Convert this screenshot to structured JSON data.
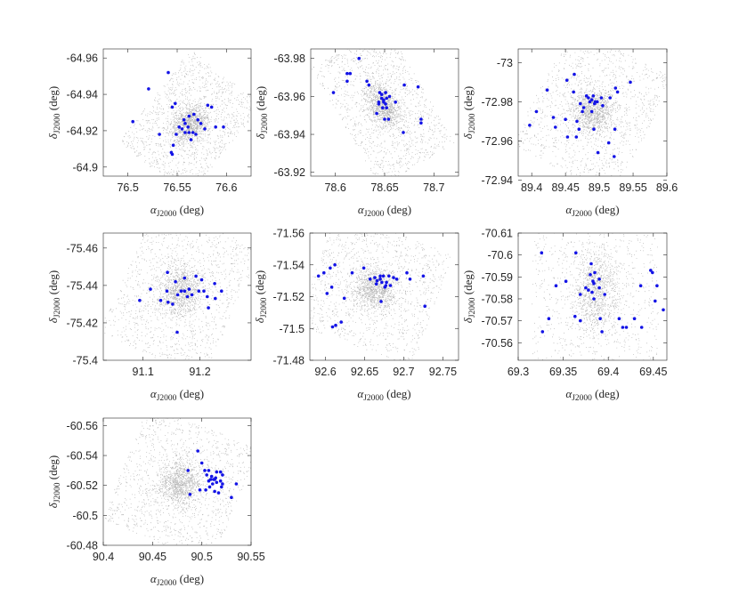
{
  "figure": {
    "background": "#ffffff",
    "field_star_color": "#b3b3b3",
    "member_color": "#1414e6",
    "axis_color": "#262626"
  },
  "chart_data": [
    {
      "type": "scatter",
      "panel": "panel-1",
      "xlabel": {
        "main": "α",
        "sub": "J2000",
        "unit": " (deg)"
      },
      "ylabel": {
        "main": "δ",
        "sub": "J2000",
        "unit": " (deg)"
      },
      "xlim": [
        76.475,
        76.625
      ],
      "ylim": [
        -64.965,
        -64.895
      ],
      "xticks": [
        76.5,
        76.55,
        76.6
      ],
      "xtick_labels": [
        "76.5",
        "76.55",
        "76.6"
      ],
      "yticks": [
        -64.96,
        -64.94,
        -64.92,
        -64.9
      ],
      "ytick_labels": [
        "-64.96",
        "-64.94",
        "-64.92",
        "-64.9"
      ],
      "field_center": [
        76.563,
        -64.924
      ],
      "field_halfwidth": [
        0.046,
        0.017
      ],
      "field_rotation": 38,
      "members": [
        [
          76.541,
          -64.952
        ],
        [
          76.521,
          -64.943
        ],
        [
          76.505,
          -64.925
        ],
        [
          76.548,
          -64.935
        ],
        [
          76.545,
          -64.933
        ],
        [
          76.581,
          -64.934
        ],
        [
          76.585,
          -64.933
        ],
        [
          76.562,
          -64.928
        ],
        [
          76.567,
          -64.929
        ],
        [
          76.571,
          -64.926
        ],
        [
          76.557,
          -64.926
        ],
        [
          76.552,
          -64.922
        ],
        [
          76.561,
          -64.922
        ],
        [
          76.574,
          -64.924
        ],
        [
          76.578,
          -64.921
        ],
        [
          76.589,
          -64.922
        ],
        [
          76.597,
          -64.922
        ],
        [
          76.555,
          -64.921
        ],
        [
          76.558,
          -64.919
        ],
        [
          76.562,
          -64.919
        ],
        [
          76.566,
          -64.919
        ],
        [
          76.569,
          -64.918
        ],
        [
          76.549,
          -64.918
        ],
        [
          76.532,
          -64.918
        ],
        [
          76.564,
          -64.915
        ],
        [
          76.546,
          -64.912
        ],
        [
          76.544,
          -64.908
        ],
        [
          76.545,
          -64.907
        ],
        [
          76.558,
          -64.924
        ]
      ]
    },
    {
      "type": "scatter",
      "panel": "panel-2",
      "xlabel": {
        "main": "α",
        "sub": "J2000",
        "unit": " (deg)"
      },
      "ylabel": {
        "main": "δ",
        "sub": "J2000",
        "unit": " (deg)"
      },
      "xlim": [
        78.575,
        78.725
      ],
      "ylim": [
        -63.985,
        -63.918
      ],
      "xticks": [
        78.6,
        78.65,
        78.7
      ],
      "xtick_labels": [
        "78.6",
        "78.65",
        "78.7"
      ],
      "yticks": [
        -63.98,
        -63.96,
        -63.94,
        -63.92
      ],
      "ytick_labels": [
        "-63.98",
        "-63.96",
        "-63.94",
        "-63.92"
      ],
      "field_center": [
        78.648,
        -63.955
      ],
      "field_halfwidth": [
        0.044,
        0.019
      ],
      "field_rotation": -30,
      "members": [
        [
          78.624,
          -63.98
        ],
        [
          78.612,
          -63.972
        ],
        [
          78.615,
          -63.972
        ],
        [
          78.612,
          -63.968
        ],
        [
          78.632,
          -63.968
        ],
        [
          78.67,
          -63.966
        ],
        [
          78.634,
          -63.966
        ],
        [
          78.684,
          -63.965
        ],
        [
          78.598,
          -63.962
        ],
        [
          78.645,
          -63.962
        ],
        [
          78.651,
          -63.962
        ],
        [
          78.647,
          -63.961
        ],
        [
          78.647,
          -63.959
        ],
        [
          78.652,
          -63.959
        ],
        [
          78.649,
          -63.958
        ],
        [
          78.649,
          -63.957
        ],
        [
          78.661,
          -63.957
        ],
        [
          78.644,
          -63.957
        ],
        [
          78.651,
          -63.956
        ],
        [
          78.648,
          -63.954
        ],
        [
          78.652,
          -63.954
        ],
        [
          78.642,
          -63.951
        ],
        [
          78.65,
          -63.948
        ],
        [
          78.654,
          -63.948
        ],
        [
          78.687,
          -63.948
        ],
        [
          78.687,
          -63.946
        ],
        [
          78.669,
          -63.941
        ],
        [
          78.644,
          -63.956
        ],
        [
          78.655,
          -63.96
        ]
      ]
    },
    {
      "type": "scatter",
      "panel": "panel-3",
      "xlabel": {
        "main": "α",
        "sub": "J2000",
        "unit": " (deg)"
      },
      "ylabel": {
        "main": "δ",
        "sub": "J2000",
        "unit": " (deg)"
      },
      "xlim": [
        89.38,
        89.6
      ],
      "ylim": [
        -73.007,
        -72.942
      ],
      "xticks": [
        89.4,
        89.45,
        89.5,
        89.55,
        89.6
      ],
      "xtick_labels": [
        "89.4",
        "89.45",
        "89.5",
        "89.55",
        "89.6"
      ],
      "yticks": [
        -73,
        -72.98,
        -72.96,
        -72.94
      ],
      "ytick_labels": [
        "-73",
        "-72.98",
        "-72.96",
        "-72.94"
      ],
      "field_center": [
        89.49,
        -72.975
      ],
      "field_halfwidth": [
        0.085,
        0.018
      ],
      "field_rotation": 28,
      "members": [
        [
          89.463,
          -72.994
        ],
        [
          89.452,
          -72.991
        ],
        [
          89.423,
          -72.986
        ],
        [
          89.462,
          -72.985
        ],
        [
          89.481,
          -72.983
        ],
        [
          89.491,
          -72.983
        ],
        [
          89.503,
          -72.982
        ],
        [
          89.516,
          -72.982
        ],
        [
          89.527,
          -72.985
        ],
        [
          89.546,
          -72.99
        ],
        [
          89.524,
          -72.987
        ],
        [
          89.486,
          -72.98
        ],
        [
          89.489,
          -72.981
        ],
        [
          89.497,
          -72.98
        ],
        [
          89.472,
          -72.979
        ],
        [
          89.493,
          -72.979
        ],
        [
          89.477,
          -72.977
        ],
        [
          89.505,
          -72.978
        ],
        [
          89.475,
          -72.975
        ],
        [
          89.489,
          -72.975
        ],
        [
          89.407,
          -72.975
        ],
        [
          89.432,
          -72.972
        ],
        [
          89.45,
          -72.971
        ],
        [
          89.467,
          -72.97
        ],
        [
          89.397,
          -72.968
        ],
        [
          89.435,
          -72.967
        ],
        [
          89.47,
          -72.966
        ],
        [
          89.492,
          -72.966
        ],
        [
          89.523,
          -72.966
        ],
        [
          89.453,
          -72.962
        ],
        [
          89.466,
          -72.962
        ],
        [
          89.514,
          -72.959
        ],
        [
          89.498,
          -72.954
        ],
        [
          89.522,
          -72.952
        ],
        [
          89.494,
          -72.98
        ],
        [
          89.484,
          -72.982
        ]
      ]
    },
    {
      "type": "scatter",
      "panel": "panel-4",
      "xlabel": {
        "main": "α",
        "sub": "J2000",
        "unit": " (deg)"
      },
      "ylabel": {
        "main": "δ",
        "sub": "J2000",
        "unit": " (deg)"
      },
      "xlim": [
        91.03,
        91.29
      ],
      "ylim": [
        -75.468,
        -75.4
      ],
      "xticks": [
        91.1,
        91.2
      ],
      "xtick_labels": [
        "91.1",
        "91.2"
      ],
      "yticks": [
        -75.46,
        -75.44,
        -75.42,
        -75.4
      ],
      "ytick_labels": [
        "-75.46",
        "-75.44",
        "-75.42",
        "-75.4"
      ],
      "field_center": [
        91.165,
        -75.437
      ],
      "field_halfwidth": [
        0.1,
        0.02
      ],
      "field_rotation": 25,
      "members": [
        [
          91.143,
          -75.447
        ],
        [
          91.193,
          -75.445
        ],
        [
          91.173,
          -75.444
        ],
        [
          91.157,
          -75.442
        ],
        [
          91.203,
          -75.443
        ],
        [
          91.226,
          -75.441
        ],
        [
          91.113,
          -75.438
        ],
        [
          91.181,
          -75.438
        ],
        [
          91.142,
          -75.437
        ],
        [
          91.167,
          -75.437
        ],
        [
          91.173,
          -75.437
        ],
        [
          91.198,
          -75.437
        ],
        [
          91.207,
          -75.437
        ],
        [
          91.238,
          -75.437
        ],
        [
          91.161,
          -75.435
        ],
        [
          91.186,
          -75.435
        ],
        [
          91.213,
          -75.434
        ],
        [
          91.094,
          -75.432
        ],
        [
          91.227,
          -75.433
        ],
        [
          91.131,
          -75.432
        ],
        [
          91.144,
          -75.431
        ],
        [
          91.152,
          -75.43
        ],
        [
          91.215,
          -75.428
        ],
        [
          91.16,
          -75.415
        ],
        [
          91.178,
          -75.434
        ]
      ]
    },
    {
      "type": "scatter",
      "panel": "panel-5",
      "xlabel": {
        "main": "α",
        "sub": "J2000",
        "unit": " (deg)"
      },
      "ylabel": {
        "main": "δ",
        "sub": "J2000",
        "unit": " (deg)"
      },
      "xlim": [
        92.58,
        92.77
      ],
      "ylim": [
        -71.56,
        -71.48
      ],
      "xticks": [
        92.6,
        92.65,
        92.7,
        92.75
      ],
      "xtick_labels": [
        "92.6",
        "92.65",
        "92.7",
        "92.75"
      ],
      "yticks": [
        -71.56,
        -71.54,
        -71.52,
        -71.5,
        -71.48
      ],
      "ytick_labels": [
        "-71.56",
        "-71.54",
        "-71.52",
        "-71.5",
        "-71.48"
      ],
      "field_center": [
        92.662,
        -71.525
      ],
      "field_halfwidth": [
        0.08,
        0.02
      ],
      "field_rotation": 20,
      "members": [
        [
          92.612,
          -71.54
        ],
        [
          92.606,
          -71.538
        ],
        [
          92.649,
          -71.538
        ],
        [
          92.598,
          -71.535
        ],
        [
          92.634,
          -71.535
        ],
        [
          92.704,
          -71.535
        ],
        [
          92.591,
          -71.533
        ],
        [
          92.67,
          -71.533
        ],
        [
          92.674,
          -71.533
        ],
        [
          92.681,
          -71.533
        ],
        [
          92.663,
          -71.532
        ],
        [
          92.687,
          -71.532
        ],
        [
          92.657,
          -71.531
        ],
        [
          92.67,
          -71.531
        ],
        [
          92.691,
          -71.531
        ],
        [
          92.708,
          -71.531
        ],
        [
          92.725,
          -71.533
        ],
        [
          92.666,
          -71.53
        ],
        [
          92.672,
          -71.529
        ],
        [
          92.678,
          -71.529
        ],
        [
          92.665,
          -71.528
        ],
        [
          92.683,
          -71.527
        ],
        [
          92.608,
          -71.526
        ],
        [
          92.676,
          -71.526
        ],
        [
          92.602,
          -71.522
        ],
        [
          92.624,
          -71.519
        ],
        [
          92.671,
          -71.517
        ],
        [
          92.727,
          -71.514
        ],
        [
          92.677,
          -71.527
        ],
        [
          92.609,
          -71.501
        ],
        [
          92.613,
          -71.502
        ],
        [
          92.62,
          -71.504
        ]
      ]
    },
    {
      "type": "scatter",
      "panel": "panel-6",
      "xlabel": {
        "main": "α",
        "sub": "J2000",
        "unit": " (deg)"
      },
      "ylabel": {
        "main": "δ",
        "sub": "J2000",
        "unit": " (deg)"
      },
      "xlim": [
        69.3,
        69.465
      ],
      "ylim": [
        -70.61,
        -70.552
      ],
      "xticks": [
        69.3,
        69.35,
        69.4,
        69.45
      ],
      "xtick_labels": [
        "69.3",
        "69.35",
        "69.4",
        "69.45"
      ],
      "yticks": [
        -70.61,
        -70.6,
        -70.59,
        -70.58,
        -70.57,
        -70.56
      ],
      "ytick_labels": [
        "-70.61",
        "-70.6",
        "-70.59",
        "-70.58",
        "-70.57",
        "-70.56"
      ],
      "field_center": [
        69.385,
        -70.584
      ],
      "field_halfwidth": [
        0.07,
        0.027
      ],
      "field_rotation": 0,
      "members": [
        [
          69.326,
          -70.601
        ],
        [
          69.364,
          -70.601
        ],
        [
          69.381,
          -70.596
        ],
        [
          69.447,
          -70.593
        ],
        [
          69.449,
          -70.592
        ],
        [
          69.385,
          -70.592
        ],
        [
          69.38,
          -70.591
        ],
        [
          69.39,
          -70.589
        ],
        [
          69.353,
          -70.588
        ],
        [
          69.436,
          -70.586
        ],
        [
          69.342,
          -70.586
        ],
        [
          69.384,
          -70.587
        ],
        [
          69.375,
          -70.585
        ],
        [
          69.39,
          -70.585
        ],
        [
          69.454,
          -70.586
        ],
        [
          69.378,
          -70.584
        ],
        [
          69.382,
          -70.583
        ],
        [
          69.396,
          -70.582
        ],
        [
          69.369,
          -70.582
        ],
        [
          69.384,
          -70.58
        ],
        [
          69.452,
          -70.579
        ],
        [
          69.461,
          -70.575
        ],
        [
          69.334,
          -70.571
        ],
        [
          69.391,
          -70.571
        ],
        [
          69.412,
          -70.571
        ],
        [
          69.429,
          -70.571
        ],
        [
          69.363,
          -70.572
        ],
        [
          69.369,
          -70.57
        ],
        [
          69.416,
          -70.567
        ],
        [
          69.42,
          -70.567
        ],
        [
          69.437,
          -70.567
        ],
        [
          69.327,
          -70.565
        ],
        [
          69.393,
          -70.565
        ],
        [
          69.383,
          -70.588
        ]
      ]
    },
    {
      "type": "scatter",
      "panel": "panel-7",
      "xlabel": {
        "main": "α",
        "sub": "J2000",
        "unit": " (deg)"
      },
      "ylabel": {
        "main": "δ",
        "sub": "J2000",
        "unit": " (deg)"
      },
      "xlim": [
        90.4,
        90.55
      ],
      "ylim": [
        -60.565,
        -60.48
      ],
      "xticks": [
        90.4,
        90.45,
        90.5,
        90.55
      ],
      "xtick_labels": [
        "90.4",
        "90.45",
        "90.5",
        "90.55"
      ],
      "yticks": [
        -60.56,
        -60.54,
        -60.52,
        -60.5,
        -60.48
      ],
      "ytick_labels": [
        "-60.56",
        "-60.54",
        "-60.52",
        "-60.5",
        "-60.48"
      ],
      "field_center": [
        90.478,
        -60.521
      ],
      "field_halfwidth": [
        0.06,
        0.022
      ],
      "field_rotation": 22,
      "members": [
        [
          90.496,
          -60.543
        ],
        [
          90.5,
          -60.535
        ],
        [
          90.503,
          -60.53
        ],
        [
          90.486,
          -60.53
        ],
        [
          90.507,
          -60.53
        ],
        [
          90.515,
          -60.529
        ],
        [
          90.519,
          -60.529
        ],
        [
          90.521,
          -60.527
        ],
        [
          90.505,
          -60.527
        ],
        [
          90.51,
          -60.526
        ],
        [
          90.514,
          -60.525
        ],
        [
          90.509,
          -60.524
        ],
        [
          90.513,
          -60.524
        ],
        [
          90.507,
          -60.523
        ],
        [
          90.519,
          -60.523
        ],
        [
          90.515,
          -60.522
        ],
        [
          90.511,
          -60.521
        ],
        [
          90.535,
          -60.521
        ],
        [
          90.521,
          -60.521
        ],
        [
          90.508,
          -60.519
        ],
        [
          90.52,
          -60.519
        ],
        [
          90.498,
          -60.517
        ],
        [
          90.504,
          -60.517
        ],
        [
          90.513,
          -60.516
        ],
        [
          90.517,
          -60.515
        ],
        [
          90.488,
          -60.514
        ],
        [
          90.53,
          -60.512
        ],
        [
          90.512,
          -60.524
        ]
      ]
    }
  ]
}
